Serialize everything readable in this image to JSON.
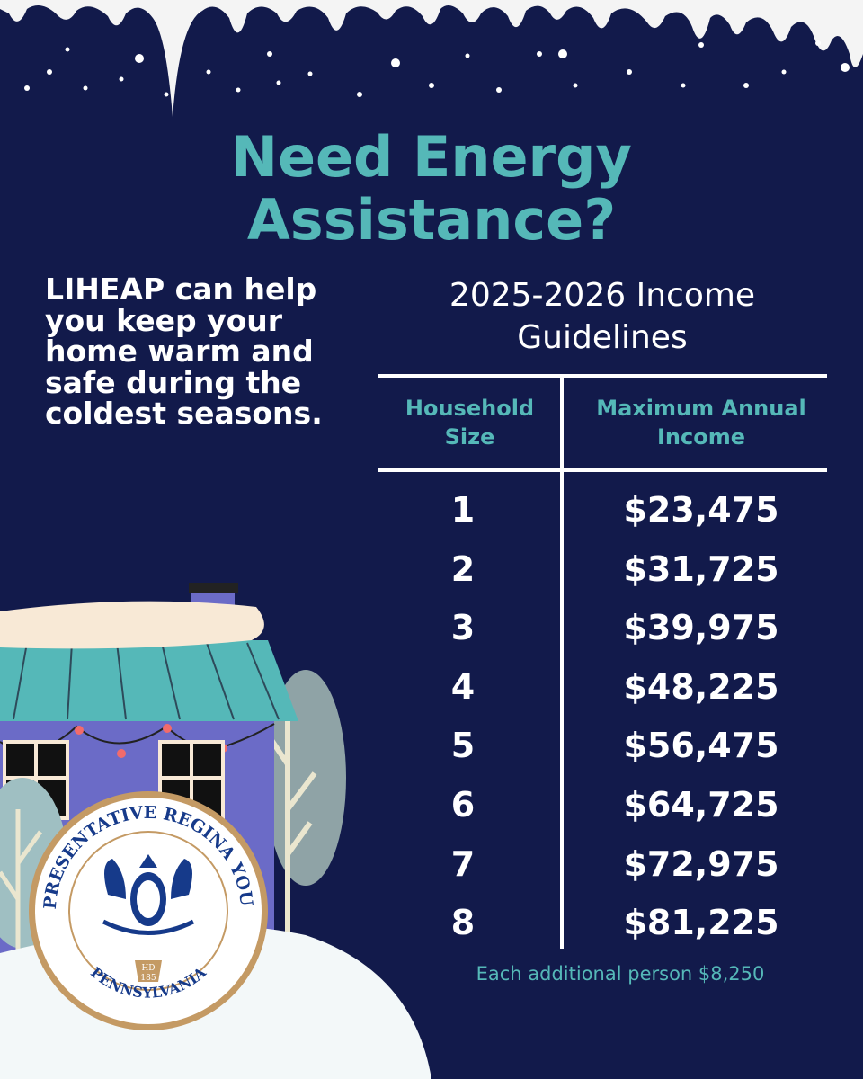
{
  "title": [
    "Need Energy",
    "Assistance?"
  ],
  "intro": "LIHEAP can help you keep your home warm and safe during the coldest seasons.",
  "guidelines": {
    "heading": [
      "2025-2026 Income",
      "Guidelines"
    ],
    "columns": [
      "Household Size",
      "Maximum Annual Income"
    ],
    "rows": [
      {
        "size": "1",
        "income": "$23,475"
      },
      {
        "size": "2",
        "income": "$31,725"
      },
      {
        "size": "3",
        "income": "$39,975"
      },
      {
        "size": "4",
        "income": "$48,225"
      },
      {
        "size": "5",
        "income": "$56,475"
      },
      {
        "size": "6",
        "income": "$64,725"
      },
      {
        "size": "7",
        "income": "$72,975"
      },
      {
        "size": "8",
        "income": "$81,225"
      }
    ],
    "footnote": "Each additional person $8,250"
  },
  "seal": {
    "top_text": "REPRESENTATIVE REGINA YOUNG",
    "bottom_text": "PENNSYLVANIA",
    "badge": [
      "HD",
      "185"
    ]
  },
  "colors": {
    "background": "#121a4b",
    "accent": "#55b8b8",
    "text": "#ffffff",
    "seal_ring": "#c49a64",
    "seal_blue": "#163a8a"
  }
}
